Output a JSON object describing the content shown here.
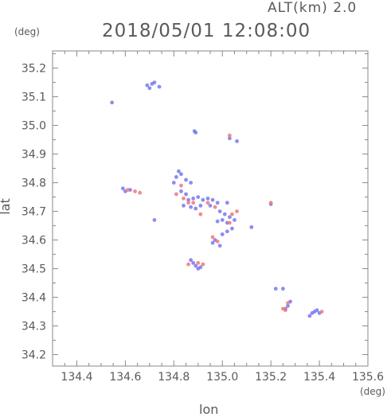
{
  "header": {
    "altitude_label": "ALT(km) 2.0",
    "timestamp": "2018/05/01 12:08:00",
    "y_unit": "(deg)",
    "x_unit": "(deg)"
  },
  "chart_data": {
    "type": "scatter",
    "title": "2018/05/01 12:08:00",
    "xlabel": "lon",
    "ylabel": "lat",
    "xlim": [
      134.3,
      135.6
    ],
    "ylim": [
      34.16,
      35.26
    ],
    "x_ticks": [
      134.4,
      134.6,
      134.8,
      135.0,
      135.2,
      135.4,
      135.6
    ],
    "x_tick_labels": [
      "134.4",
      "134.6",
      "134.8",
      "135.0",
      "135.2",
      "135.4",
      "135.6"
    ],
    "y_ticks": [
      34.2,
      34.3,
      34.4,
      34.5,
      34.6,
      34.7,
      34.8,
      34.9,
      35.0,
      35.1,
      35.2
    ],
    "y_tick_labels": [
      "34.2",
      "34.3",
      "34.4",
      "34.5",
      "34.6",
      "34.7",
      "34.8",
      "34.9",
      "35.0",
      "35.1",
      "35.2"
    ],
    "grid": false,
    "colors": {
      "blue": "#7878f0",
      "red": "#f07878",
      "axis": "#888888"
    },
    "series": [
      {
        "color": "blue",
        "points": [
          [
            134.69,
            35.14
          ],
          [
            134.71,
            35.145
          ],
          [
            134.72,
            35.15
          ],
          [
            134.74,
            35.135
          ],
          [
            134.7,
            35.13
          ],
          [
            134.545,
            35.08
          ],
          [
            134.885,
            34.98
          ],
          [
            134.89,
            34.975
          ],
          [
            135.03,
            34.955
          ],
          [
            135.06,
            34.945
          ],
          [
            134.82,
            34.84
          ],
          [
            134.83,
            34.83
          ],
          [
            134.81,
            34.82
          ],
          [
            134.85,
            34.81
          ],
          [
            134.8,
            34.8
          ],
          [
            134.87,
            34.8
          ],
          [
            134.59,
            34.78
          ],
          [
            134.6,
            34.77
          ],
          [
            134.62,
            34.775
          ],
          [
            134.83,
            34.77
          ],
          [
            134.85,
            34.76
          ],
          [
            134.86,
            34.74
          ],
          [
            134.88,
            34.745
          ],
          [
            134.9,
            34.75
          ],
          [
            134.92,
            34.74
          ],
          [
            134.94,
            34.745
          ],
          [
            134.96,
            34.74
          ],
          [
            134.98,
            34.73
          ],
          [
            135.02,
            34.73
          ],
          [
            134.84,
            34.72
          ],
          [
            134.87,
            34.715
          ],
          [
            134.89,
            34.71
          ],
          [
            134.91,
            34.72
          ],
          [
            134.95,
            34.72
          ],
          [
            134.99,
            34.7
          ],
          [
            135.01,
            34.69
          ],
          [
            135.03,
            34.68
          ],
          [
            135.05,
            34.67
          ],
          [
            135.02,
            34.66
          ],
          [
            135.0,
            34.67
          ],
          [
            134.98,
            34.665
          ],
          [
            135.04,
            34.64
          ],
          [
            135.02,
            34.63
          ],
          [
            135.0,
            34.62
          ],
          [
            134.97,
            34.6
          ],
          [
            134.96,
            34.59
          ],
          [
            134.99,
            34.58
          ],
          [
            135.12,
            34.645
          ],
          [
            134.72,
            34.67
          ],
          [
            134.88,
            34.52
          ],
          [
            134.89,
            34.51
          ],
          [
            134.9,
            34.5
          ],
          [
            134.91,
            34.505
          ],
          [
            134.87,
            34.53
          ],
          [
            135.2,
            34.725
          ],
          [
            135.26,
            34.36
          ],
          [
            135.27,
            34.37
          ],
          [
            135.28,
            34.385
          ],
          [
            135.37,
            34.345
          ],
          [
            135.38,
            34.35
          ],
          [
            135.39,
            34.355
          ],
          [
            135.4,
            34.345
          ],
          [
            135.36,
            34.335
          ],
          [
            135.25,
            34.43
          ],
          [
            135.22,
            34.43
          ]
        ]
      },
      {
        "color": "red",
        "points": [
          [
            134.61,
            34.775
          ],
          [
            134.64,
            34.77
          ],
          [
            134.66,
            34.765
          ],
          [
            134.84,
            34.745
          ],
          [
            134.86,
            34.73
          ],
          [
            134.94,
            34.73
          ],
          [
            134.97,
            34.715
          ],
          [
            135.04,
            34.69
          ],
          [
            135.06,
            34.7
          ],
          [
            135.03,
            34.66
          ],
          [
            134.96,
            34.61
          ],
          [
            134.98,
            34.595
          ],
          [
            134.9,
            34.52
          ],
          [
            134.92,
            34.515
          ],
          [
            134.86,
            34.515
          ],
          [
            135.2,
            34.73
          ],
          [
            135.03,
            34.965
          ],
          [
            135.26,
            34.355
          ],
          [
            135.27,
            34.38
          ],
          [
            135.25,
            34.36
          ],
          [
            135.41,
            34.35
          ],
          [
            134.83,
            34.79
          ],
          [
            134.88,
            34.73
          ],
          [
            134.81,
            34.76
          ],
          [
            134.91,
            34.69
          ]
        ]
      }
    ]
  }
}
